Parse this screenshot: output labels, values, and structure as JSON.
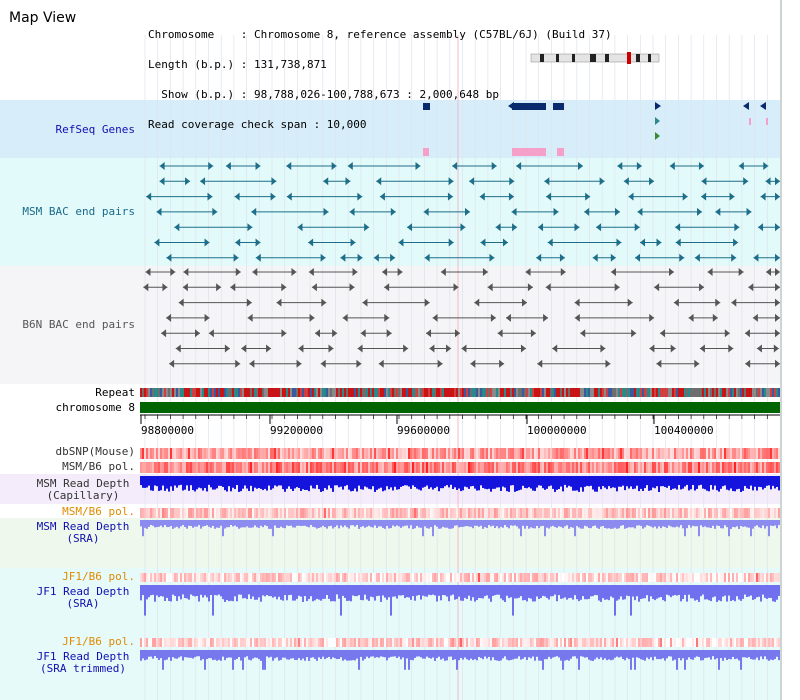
{
  "title": "Map View",
  "header": {
    "line1": "Chromosome    : Chromosome 8, reference assembly (C57BL/6J) (Build 37)",
    "line2": "Length (b.p.) : 131,738,871",
    "line3": "  Show (b.p.) : 98,788,026-100,788,673 : 2,000,648 bp",
    "line4": "Read coverage check span : 10,000"
  },
  "tracks": {
    "refseq": "RefSeq Genes",
    "msm_bac": "MSM BAC end pairs",
    "b6n_bac": "B6N BAC end pairs",
    "repeat": "Repeat",
    "chromosome": "chromosome 8",
    "dbsnp": "dbSNP(Mouse)",
    "msm_b6_pol": "MSM/B6 pol.",
    "msm_depth_cap": "MSM Read Depth",
    "msm_depth_cap2": "(Capillary)",
    "msm_b6_pol2": "MSM/B6 pol.",
    "msm_depth_sra": "MSM Read Depth",
    "msm_depth_sra2": "(SRA)",
    "jf1_pol1": "JF1/B6 pol.",
    "jf1_depth_sra": "JF1 Read Depth",
    "jf1_depth_sra2": "(SRA)",
    "jf1_pol2": "JF1/B6 pol.",
    "jf1_depth_trim": "JF1 Read Depth",
    "jf1_depth_trim2": "(SRA trimmed)"
  },
  "ruler": {
    "ticks": [
      "98800000",
      "99200000",
      "99600000",
      "100000000",
      "100400000"
    ]
  },
  "colors": {
    "refseq_bg": "#d7eefa",
    "msm_bg": "#e2fafa",
    "b6n_bg": "#f5f5f7",
    "gene": "#0a2a6e",
    "gene_pink": "#f4a0c8",
    "msm_feature": "#1e6e8a",
    "b6n_feature": "#555555",
    "chromosome": "#006400",
    "depth_blue": "#1414dc",
    "depth_light": "#8c8cf0",
    "label_blue": "#1010b0",
    "label_orange": "#e08a00",
    "label_teal": "#1a6a8a"
  }
}
